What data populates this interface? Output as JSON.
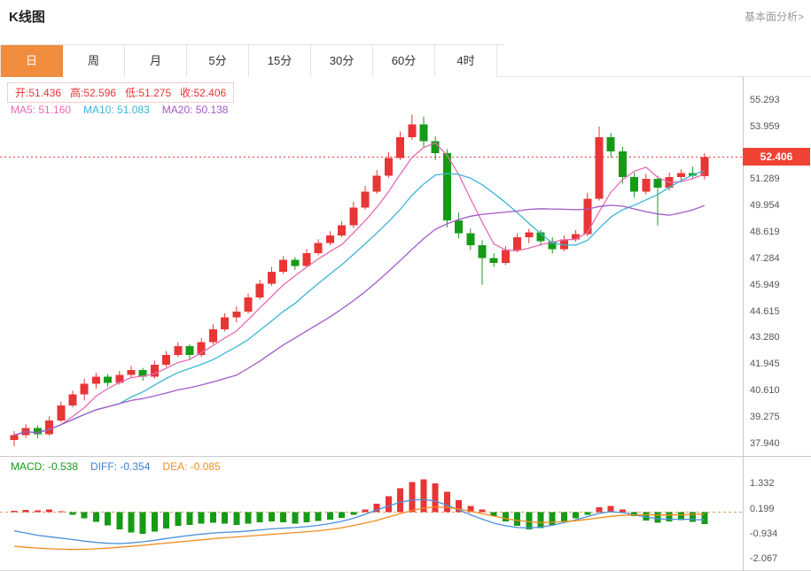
{
  "header": {
    "title": "K线图",
    "link_label": "基本面分析>"
  },
  "tabs": {
    "items": [
      "日",
      "周",
      "月",
      "5分",
      "15分",
      "30分",
      "60分",
      "4时"
    ],
    "active_index": 0,
    "active_color": "#f08c3e"
  },
  "main": {
    "ohlc_items": [
      "开:51.436",
      "高:52.596",
      "低:51.275",
      "收:52.406"
    ],
    "ma_items": [
      {
        "text": "MA5: 51.160",
        "color": "#e66bb4"
      },
      {
        "text": "MA10: 51.083",
        "color": "#3ab6d8"
      },
      {
        "text": "MA20: 50.138",
        "color": "#a05ac8"
      }
    ],
    "price_tag": "52.406",
    "price_tag_color": "#f04334",
    "y_ticks": [
      "55.293",
      "53.959",
      "51.289",
      "49.954",
      "48.619",
      "47.284",
      "45.949",
      "44.615",
      "43.280",
      "41.945",
      "40.610",
      "39.275",
      "37.940"
    ]
  },
  "macd_panel": {
    "items": [
      {
        "text": "MACD: -0.538",
        "color": "#189a18"
      },
      {
        "text": "DIFF: -0.354",
        "color": "#3f7fd0"
      },
      {
        "text": "DEA: -0.085",
        "color": "#f09020"
      }
    ],
    "y_ticks": [
      "1.332",
      "0.199",
      "-0.934",
      "-2.067"
    ]
  },
  "chart_data": {
    "type": "candlestick",
    "title": "K线图",
    "period": "日",
    "up_color": "#e83535",
    "down_color": "#169b16",
    "y_range": [
      37.3,
      56.45
    ],
    "y_tick_values": [
      55.293,
      53.959,
      52.624,
      51.289,
      49.954,
      48.619,
      47.284,
      45.949,
      44.615,
      43.28,
      41.945,
      40.61,
      39.275,
      37.94
    ],
    "current_price": 52.406,
    "last_bar": {
      "open": 51.436,
      "high": 52.596,
      "low": 51.275,
      "close": 52.406
    },
    "overlays": [
      {
        "name": "MA5",
        "period": 5,
        "color": "#e66bb4",
        "last_value": 51.16
      },
      {
        "name": "MA10",
        "period": 10,
        "color": "#3ab6d8",
        "last_value": 51.083
      },
      {
        "name": "MA20",
        "period": 20,
        "color": "#a05ac8",
        "last_value": 50.138
      }
    ],
    "candles_ohlc": [
      [
        38.1,
        38.55,
        37.8,
        38.35
      ],
      [
        38.35,
        38.9,
        38.22,
        38.7
      ],
      [
        38.7,
        38.85,
        38.18,
        38.4
      ],
      [
        38.4,
        39.3,
        38.32,
        39.1
      ],
      [
        39.1,
        40.05,
        39.0,
        39.85
      ],
      [
        39.85,
        40.6,
        39.75,
        40.4
      ],
      [
        40.4,
        41.2,
        40.1,
        40.95
      ],
      [
        40.95,
        41.5,
        40.7,
        41.3
      ],
      [
        41.3,
        41.45,
        40.8,
        41.0
      ],
      [
        41.0,
        41.6,
        40.9,
        41.4
      ],
      [
        41.4,
        41.85,
        41.25,
        41.65
      ],
      [
        41.65,
        41.75,
        41.1,
        41.3
      ],
      [
        41.3,
        42.1,
        41.2,
        41.9
      ],
      [
        41.9,
        42.6,
        41.8,
        42.4
      ],
      [
        42.4,
        43.05,
        42.3,
        42.85
      ],
      [
        42.85,
        42.95,
        42.18,
        42.4
      ],
      [
        42.4,
        43.25,
        42.3,
        43.05
      ],
      [
        43.05,
        43.95,
        42.95,
        43.7
      ],
      [
        43.7,
        44.5,
        43.6,
        44.3
      ],
      [
        44.3,
        44.85,
        44.05,
        44.6
      ],
      [
        44.6,
        45.5,
        44.48,
        45.3
      ],
      [
        45.3,
        46.2,
        45.2,
        46.0
      ],
      [
        46.0,
        46.85,
        45.9,
        46.6
      ],
      [
        46.6,
        47.4,
        46.5,
        47.2
      ],
      [
        47.2,
        47.35,
        46.7,
        46.9
      ],
      [
        46.9,
        47.75,
        46.8,
        47.55
      ],
      [
        47.55,
        48.25,
        47.45,
        48.05
      ],
      [
        48.05,
        48.65,
        47.95,
        48.45
      ],
      [
        48.45,
        49.15,
        48.35,
        48.95
      ],
      [
        48.95,
        50.15,
        48.82,
        49.85
      ],
      [
        49.85,
        50.95,
        49.75,
        50.65
      ],
      [
        50.65,
        51.75,
        50.55,
        51.45
      ],
      [
        51.45,
        52.65,
        51.35,
        52.35
      ],
      [
        52.35,
        53.7,
        52.25,
        53.4
      ],
      [
        53.4,
        54.55,
        53.28,
        54.05
      ],
      [
        54.05,
        54.45,
        52.9,
        53.2
      ],
      [
        53.2,
        53.45,
        52.25,
        52.6
      ],
      [
        52.6,
        52.8,
        48.85,
        49.2
      ],
      [
        49.2,
        49.6,
        48.3,
        48.55
      ],
      [
        48.55,
        48.8,
        47.7,
        47.95
      ],
      [
        47.95,
        48.2,
        45.95,
        47.3
      ],
      [
        47.3,
        47.55,
        46.85,
        47.05
      ],
      [
        47.05,
        47.9,
        46.95,
        47.7
      ],
      [
        47.7,
        48.55,
        47.6,
        48.35
      ],
      [
        48.35,
        48.78,
        48.05,
        48.6
      ],
      [
        48.6,
        48.72,
        47.92,
        48.15
      ],
      [
        48.15,
        48.35,
        47.52,
        47.75
      ],
      [
        47.75,
        48.45,
        47.65,
        48.25
      ],
      [
        48.25,
        48.72,
        48.12,
        48.5
      ],
      [
        48.5,
        50.6,
        48.4,
        50.3
      ],
      [
        50.3,
        53.95,
        50.2,
        53.4
      ],
      [
        53.4,
        53.62,
        52.38,
        52.7
      ],
      [
        52.7,
        52.92,
        51.05,
        51.4
      ],
      [
        51.4,
        51.62,
        50.35,
        50.65
      ],
      [
        50.65,
        51.55,
        50.52,
        51.3
      ],
      [
        51.3,
        51.45,
        48.95,
        50.85
      ],
      [
        50.85,
        51.62,
        50.72,
        51.4
      ],
      [
        51.4,
        51.78,
        51.22,
        51.6
      ],
      [
        51.6,
        51.92,
        51.28,
        51.45
      ],
      [
        51.436,
        52.596,
        51.275,
        52.406
      ]
    ],
    "macd": {
      "macd_value": -0.538,
      "diff_value": -0.354,
      "dea_value": -0.085,
      "range": [
        -2.64,
        2.52
      ],
      "hist_up_color": "#e83535",
      "hist_down_color": "#169b16",
      "diff_color": "#4a90d9",
      "dea_color": "#f08c1e",
      "hist": [
        0.06,
        0.1,
        0.08,
        0.12,
        0.05,
        -0.12,
        -0.28,
        -0.45,
        -0.6,
        -0.78,
        -0.92,
        -0.98,
        -0.88,
        -0.75,
        -0.62,
        -0.58,
        -0.52,
        -0.48,
        -0.52,
        -0.58,
        -0.52,
        -0.46,
        -0.42,
        -0.46,
        -0.52,
        -0.46,
        -0.4,
        -0.34,
        -0.26,
        -0.12,
        0.12,
        0.38,
        0.72,
        1.08,
        1.38,
        1.5,
        1.32,
        0.92,
        0.55,
        0.28,
        0.12,
        -0.18,
        -0.42,
        -0.62,
        -0.78,
        -0.72,
        -0.58,
        -0.42,
        -0.28,
        -0.12,
        0.22,
        0.28,
        0.12,
        -0.18,
        -0.38,
        -0.48,
        -0.42,
        -0.36,
        -0.44,
        -0.538
      ],
      "diff": [
        -0.85,
        -0.95,
        -1.05,
        -1.12,
        -1.18,
        -1.25,
        -1.32,
        -1.38,
        -1.42,
        -1.43,
        -1.4,
        -1.35,
        -1.28,
        -1.2,
        -1.13,
        -1.06,
        -1.0,
        -0.95,
        -0.92,
        -0.9,
        -0.86,
        -0.81,
        -0.76,
        -0.73,
        -0.7,
        -0.66,
        -0.6,
        -0.52,
        -0.42,
        -0.28,
        -0.1,
        0.1,
        0.28,
        0.45,
        0.55,
        0.58,
        0.5,
        0.32,
        0.1,
        -0.12,
        -0.32,
        -0.5,
        -0.62,
        -0.7,
        -0.72,
        -0.68,
        -0.6,
        -0.48,
        -0.35,
        -0.2,
        -0.05,
        0.02,
        -0.02,
        -0.12,
        -0.22,
        -0.3,
        -0.33,
        -0.32,
        -0.34,
        -0.354
      ],
      "dea": [
        -1.55,
        -1.6,
        -1.64,
        -1.67,
        -1.69,
        -1.7,
        -1.69,
        -1.67,
        -1.64,
        -1.6,
        -1.56,
        -1.51,
        -1.46,
        -1.41,
        -1.36,
        -1.31,
        -1.26,
        -1.21,
        -1.17,
        -1.13,
        -1.09,
        -1.05,
        -1.01,
        -0.97,
        -0.93,
        -0.89,
        -0.85,
        -0.79,
        -0.71,
        -0.61,
        -0.5,
        -0.37,
        -0.22,
        -0.07,
        0.07,
        0.18,
        0.24,
        0.22,
        0.14,
        0.04,
        -0.07,
        -0.18,
        -0.29,
        -0.38,
        -0.44,
        -0.47,
        -0.46,
        -0.43,
        -0.39,
        -0.33,
        -0.26,
        -0.19,
        -0.15,
        -0.13,
        -0.12,
        -0.13,
        -0.13,
        -0.12,
        -0.1,
        -0.085
      ],
      "y_ticks": [
        1.332,
        0.199,
        -0.934,
        -2.067
      ]
    }
  }
}
